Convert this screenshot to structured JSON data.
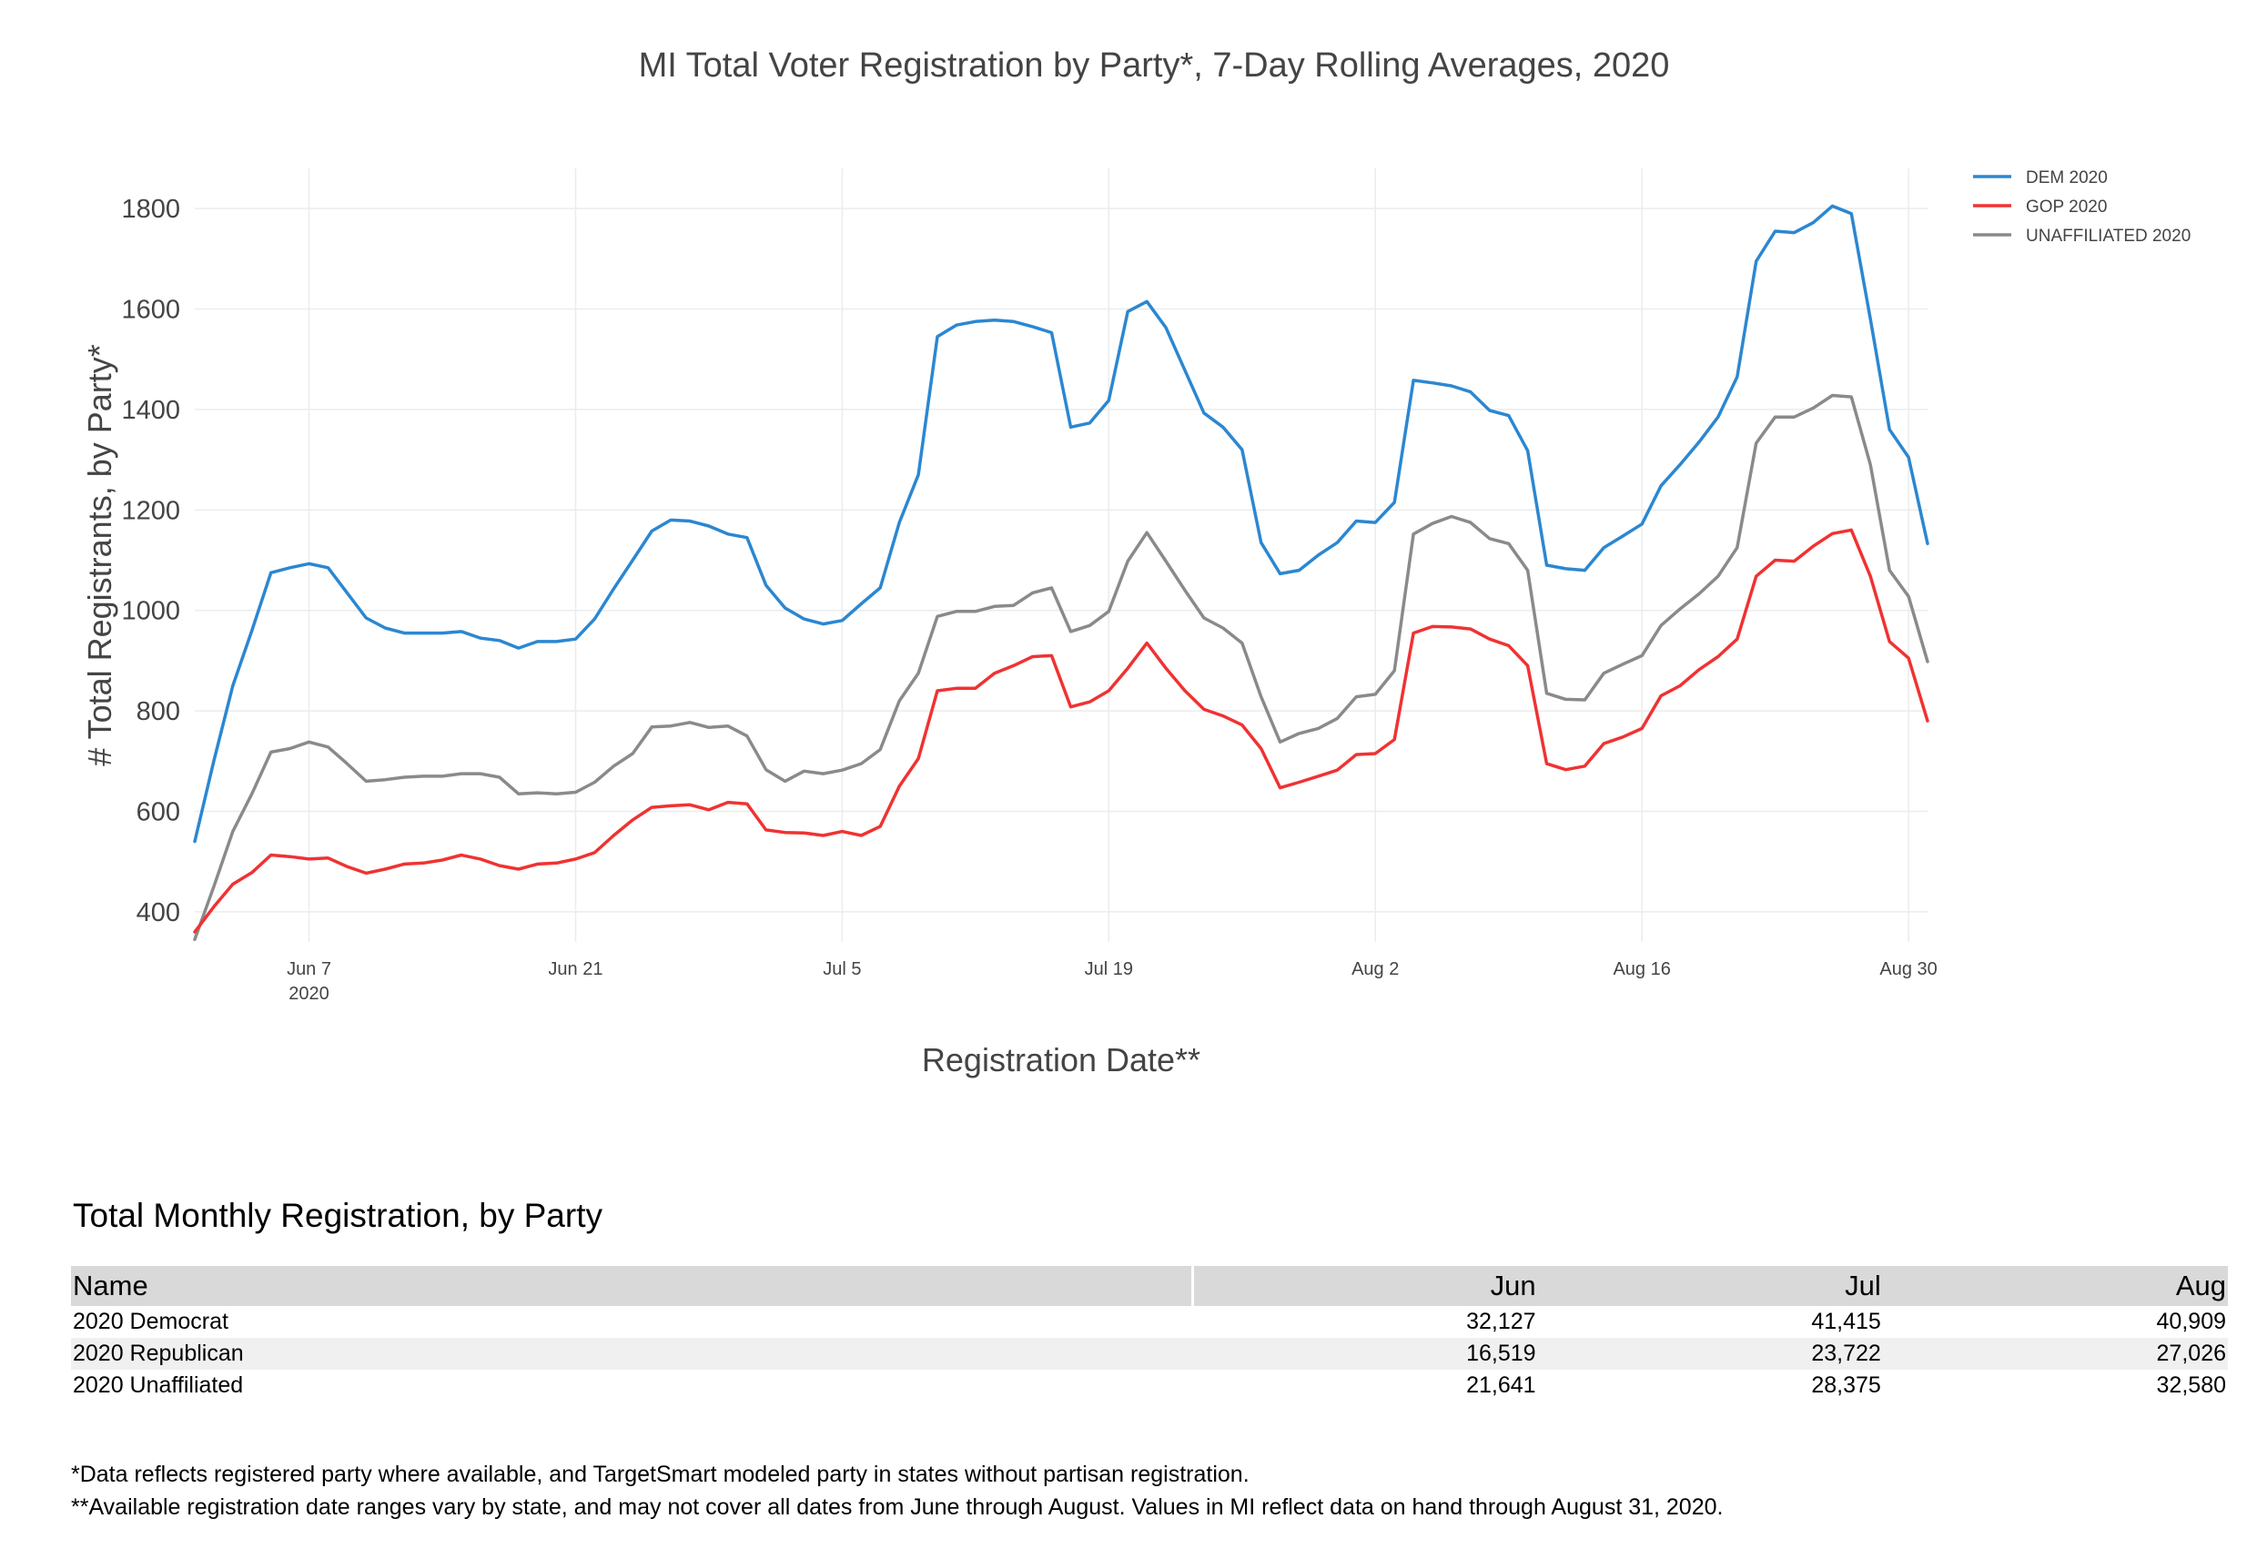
{
  "chart_data": {
    "type": "line",
    "title": "MI Total Voter Registration by Party*, 7-Day Rolling Averages, 2020",
    "xlabel": "Registration Date**",
    "ylabel": "# Total Registrants, by Party*",
    "start_date": "2020-06-01",
    "end_date": "2020-08-31",
    "xlim": [
      "2020-06-01",
      "2020-08-31"
    ],
    "ylim": [
      340,
      1880
    ],
    "y_ticks": [
      400,
      600,
      800,
      1000,
      1200,
      1400,
      1600,
      1800
    ],
    "x_ticks": [
      {
        "date": "2020-06-07",
        "label": "Jun 7",
        "sublabel": "2020"
      },
      {
        "date": "2020-06-21",
        "label": "Jun 21"
      },
      {
        "date": "2020-07-05",
        "label": "Jul 5"
      },
      {
        "date": "2020-07-19",
        "label": "Jul 19"
      },
      {
        "date": "2020-08-02",
        "label": "Aug 2"
      },
      {
        "date": "2020-08-16",
        "label": "Aug 16"
      },
      {
        "date": "2020-08-30",
        "label": "Aug 30"
      }
    ],
    "grid": true,
    "legend_position": "top-right",
    "series": [
      {
        "name": "DEM 2020",
        "color": "#2b87d1",
        "values": [
          540,
          700,
          850,
          960,
          1075,
          1085,
          1093,
          1085,
          1035,
          985,
          965,
          955,
          955,
          955,
          958,
          945,
          940,
          925,
          938,
          938,
          943,
          983,
          1043,
          1100,
          1158,
          1180,
          1178,
          1168,
          1152,
          1145,
          1050,
          1005,
          983,
          973,
          980,
          1013,
          1045,
          1175,
          1270,
          1545,
          1568,
          1575,
          1578,
          1575,
          1565,
          1553,
          1365,
          1373,
          1418,
          1595,
          1615,
          1563,
          1478,
          1393,
          1365,
          1320,
          1135,
          1073,
          1080,
          1110,
          1135,
          1178,
          1175,
          1215,
          1458,
          1453,
          1447,
          1435,
          1398,
          1388,
          1318,
          1090,
          1083,
          1080,
          1125,
          1148,
          1172,
          1248,
          1290,
          1335,
          1385,
          1465,
          1695,
          1755,
          1752,
          1772,
          1805,
          1790,
          1580,
          1360,
          1305,
          1133
        ]
      },
      {
        "name": "GOP 2020",
        "color": "#f03232",
        "values": [
          360,
          410,
          455,
          478,
          513,
          510,
          505,
          507,
          490,
          477,
          485,
          495,
          497,
          503,
          513,
          505,
          492,
          485,
          495,
          497,
          505,
          518,
          552,
          583,
          608,
          611,
          613,
          603,
          618,
          615,
          563,
          558,
          557,
          552,
          560,
          552,
          570,
          650,
          705,
          840,
          845,
          845,
          875,
          890,
          908,
          910,
          808,
          818,
          840,
          885,
          935,
          885,
          840,
          803,
          790,
          772,
          725,
          647,
          658,
          670,
          682,
          713,
          715,
          743,
          955,
          968,
          967,
          963,
          943,
          930,
          890,
          695,
          683,
          690,
          735,
          748,
          765,
          830,
          850,
          882,
          908,
          943,
          1068,
          1100,
          1098,
          1128,
          1153,
          1160,
          1068,
          938,
          905,
          780
        ]
      },
      {
        "name": "UNAFFILIATED 2020",
        "color": "#8a8a8a",
        "values": [
          345,
          450,
          560,
          635,
          718,
          725,
          738,
          728,
          695,
          660,
          663,
          668,
          670,
          670,
          675,
          675,
          668,
          635,
          637,
          635,
          638,
          658,
          690,
          715,
          768,
          770,
          777,
          767,
          770,
          750,
          683,
          660,
          680,
          675,
          682,
          695,
          723,
          820,
          875,
          988,
          998,
          998,
          1008,
          1010,
          1035,
          1045,
          958,
          970,
          998,
          1098,
          1155,
          1098,
          1040,
          985,
          965,
          935,
          828,
          738,
          755,
          765,
          785,
          828,
          833,
          880,
          1152,
          1173,
          1187,
          1175,
          1143,
          1133,
          1080,
          835,
          823,
          822,
          875,
          893,
          910,
          970,
          1003,
          1033,
          1068,
          1125,
          1333,
          1385,
          1385,
          1403,
          1428,
          1425,
          1290,
          1080,
          1028,
          898
        ]
      }
    ]
  },
  "table": {
    "title": "Total Monthly Registration, by Party",
    "headers": [
      "Name",
      "Jun",
      "Jul",
      "Aug"
    ],
    "rows": [
      [
        "2020 Democrat",
        "32,127",
        "41,415",
        "40,909"
      ],
      [
        "2020 Republican",
        "16,519",
        "23,722",
        "27,026"
      ],
      [
        "2020 Unaffiliated",
        "21,641",
        "28,375",
        "32,580"
      ]
    ]
  },
  "footnotes": [
    "*Data reflects registered party where available, and TargetSmart modeled party in states without partisan registration.",
    "**Available registration date ranges vary by state, and may not cover all dates from June through August. Values in MI reflect data on hand through August 31, 2020."
  ]
}
